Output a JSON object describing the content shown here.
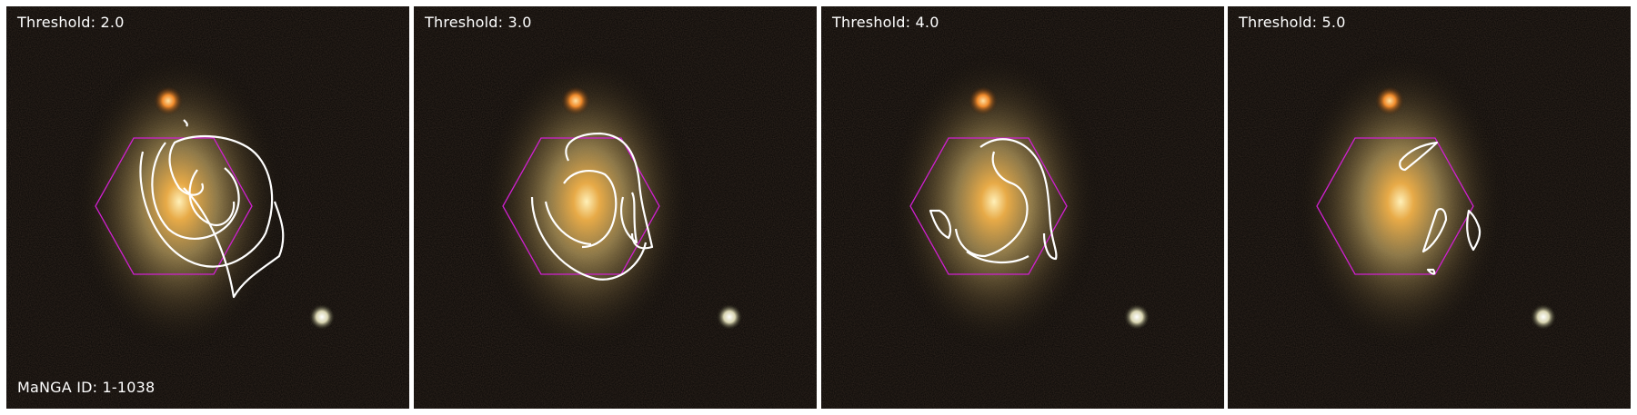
{
  "panels": [
    {
      "threshold_label": "Threshold: 2.0",
      "manga_label": "MaNGA ID: 1-1038"
    },
    {
      "threshold_label": "Threshold: 3.0"
    },
    {
      "threshold_label": "Threshold: 4.0"
    },
    {
      "threshold_label": "Threshold: 5.0"
    }
  ],
  "colors": {
    "background": "#050403",
    "contour": "#ffffff",
    "ifu_hexagon": "#d020d0",
    "galaxy_core": "#f2b24a",
    "galaxy_halo": "#9c8a55",
    "foreground_star_orange": "#f08a2a",
    "foreground_star_white": "#f4f2e0",
    "separator": "#ffffff"
  }
}
